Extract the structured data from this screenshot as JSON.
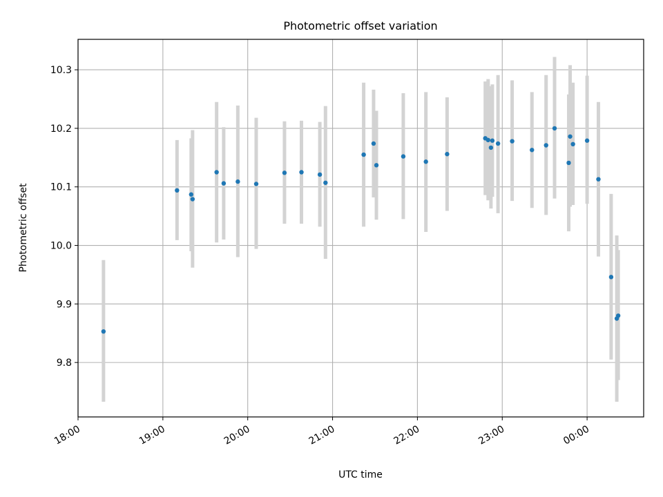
{
  "chart_data": {
    "type": "scatter",
    "title": "Photometric offset variation",
    "xlabel": "UTC time",
    "ylabel": "Photometric offset",
    "x_axis_kind": "time",
    "xlim": [
      "18:00",
      "00:40"
    ],
    "ylim": [
      9.707,
      10.352
    ],
    "x_ticks": [
      "18:00",
      "19:00",
      "20:00",
      "21:00",
      "22:00",
      "23:00",
      "00:00"
    ],
    "y_ticks": [
      "9.8",
      "9.9",
      "10.0",
      "10.1",
      "10.2",
      "10.3"
    ],
    "grid": true,
    "marker_color": "#1f77b4",
    "errorbar_color": "#d3d3d3",
    "points": [
      {
        "t": "18:18",
        "y": 9.853,
        "lo": 9.733,
        "hi": 9.975
      },
      {
        "t": "19:10",
        "y": 10.094,
        "lo": 10.009,
        "hi": 10.18
      },
      {
        "t": "19:20",
        "y": 10.087,
        "lo": 9.99,
        "hi": 10.183
      },
      {
        "t": "19:21",
        "y": 10.079,
        "lo": 9.962,
        "hi": 10.197
      },
      {
        "t": "19:38",
        "y": 10.125,
        "lo": 10.005,
        "hi": 10.245
      },
      {
        "t": "19:43",
        "y": 10.106,
        "lo": 10.01,
        "hi": 10.202
      },
      {
        "t": "19:53",
        "y": 10.109,
        "lo": 9.98,
        "hi": 10.239
      },
      {
        "t": "20:06",
        "y": 10.105,
        "lo": 9.994,
        "hi": 10.218
      },
      {
        "t": "20:26",
        "y": 10.124,
        "lo": 10.037,
        "hi": 10.212
      },
      {
        "t": "20:38",
        "y": 10.125,
        "lo": 10.037,
        "hi": 10.213
      },
      {
        "t": "20:51",
        "y": 10.121,
        "lo": 10.032,
        "hi": 10.211
      },
      {
        "t": "20:55",
        "y": 10.107,
        "lo": 9.977,
        "hi": 10.238
      },
      {
        "t": "21:22",
        "y": 10.155,
        "lo": 10.032,
        "hi": 10.278
      },
      {
        "t": "21:29",
        "y": 10.174,
        "lo": 10.082,
        "hi": 10.266
      },
      {
        "t": "21:31",
        "y": 10.137,
        "lo": 10.044,
        "hi": 10.23
      },
      {
        "t": "21:50",
        "y": 10.152,
        "lo": 10.045,
        "hi": 10.26
      },
      {
        "t": "22:06",
        "y": 10.143,
        "lo": 10.023,
        "hi": 10.262
      },
      {
        "t": "22:21",
        "y": 10.156,
        "lo": 10.059,
        "hi": 10.253
      },
      {
        "t": "22:48",
        "y": 10.183,
        "lo": 10.086,
        "hi": 10.28
      },
      {
        "t": "22:50",
        "y": 10.18,
        "lo": 10.077,
        "hi": 10.284
      },
      {
        "t": "22:52",
        "y": 10.167,
        "lo": 10.063,
        "hi": 10.272
      },
      {
        "t": "22:53",
        "y": 10.179,
        "lo": 10.083,
        "hi": 10.275
      },
      {
        "t": "22:57",
        "y": 10.174,
        "lo": 10.055,
        "hi": 10.291
      },
      {
        "t": "23:07",
        "y": 10.178,
        "lo": 10.076,
        "hi": 10.282
      },
      {
        "t": "23:21",
        "y": 10.163,
        "lo": 10.064,
        "hi": 10.262
      },
      {
        "t": "23:31",
        "y": 10.171,
        "lo": 10.052,
        "hi": 10.291
      },
      {
        "t": "23:37",
        "y": 10.2,
        "lo": 10.08,
        "hi": 10.322
      },
      {
        "t": "23:47",
        "y": 10.141,
        "lo": 10.024,
        "hi": 10.258
      },
      {
        "t": "23:48",
        "y": 10.186,
        "lo": 10.066,
        "hi": 10.308
      },
      {
        "t": "23:50",
        "y": 10.173,
        "lo": 10.069,
        "hi": 10.278
      },
      {
        "t": "00:00",
        "y": 10.179,
        "lo": 10.071,
        "hi": 10.29
      },
      {
        "t": "00:08",
        "y": 10.113,
        "lo": 9.981,
        "hi": 10.245
      },
      {
        "t": "00:17",
        "y": 9.946,
        "lo": 9.805,
        "hi": 10.088
      },
      {
        "t": "00:21",
        "y": 9.875,
        "lo": 9.733,
        "hi": 10.017
      },
      {
        "t": "00:22",
        "y": 9.88,
        "lo": 9.77,
        "hi": 9.992
      }
    ]
  }
}
